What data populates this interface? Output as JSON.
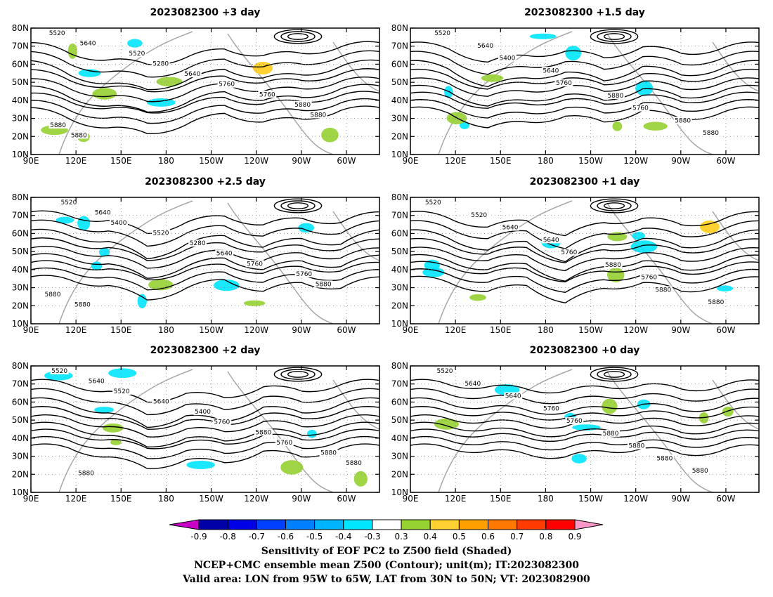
{
  "panels": [
    {
      "title": "2023082300 +3 day",
      "labels": [
        "5520",
        "5640",
        "5520",
        "5280",
        "5640",
        "5760",
        "5760",
        "5880",
        "5880",
        "5880",
        "5880"
      ]
    },
    {
      "title": "2023082300 +1.5 day",
      "labels": [
        "5520",
        "5640",
        "5400",
        "5640",
        "5760",
        "5880",
        "5760",
        "5880",
        "5880"
      ]
    },
    {
      "title": "2023082300 +2.5 day",
      "labels": [
        "5520",
        "5640",
        "5400",
        "5520",
        "5280",
        "5640",
        "5760",
        "5760",
        "5880",
        "5880",
        "5880"
      ]
    },
    {
      "title": "2023082300 +1 day",
      "labels": [
        "5520",
        "5520",
        "5640",
        "5640",
        "5760",
        "5880",
        "5760",
        "5880",
        "5880"
      ]
    },
    {
      "title": "2023082300 +2 day",
      "labels": [
        "5520",
        "5640",
        "5520",
        "5640",
        "5400",
        "5760",
        "5880",
        "5760",
        "5880",
        "5880",
        "5880"
      ]
    },
    {
      "title": "2023082300 +0 day",
      "labels": [
        "5520",
        "5640",
        "5640",
        "5760",
        "5760",
        "5880",
        "5880",
        "5880",
        "5880"
      ]
    }
  ],
  "axes": {
    "lat_ticks": [
      "10N",
      "20N",
      "30N",
      "40N",
      "50N",
      "60N",
      "70N",
      "80N"
    ],
    "lon_ticks": [
      "90E",
      "120E",
      "150E",
      "180",
      "150W",
      "120W",
      "90W",
      "60W"
    ]
  },
  "colorbar": {
    "ticks": [
      "-0.9",
      "-0.8",
      "-0.7",
      "-0.6",
      "-0.5",
      "-0.4",
      "-0.3",
      "0.3",
      "0.4",
      "0.5",
      "0.6",
      "0.7",
      "0.8",
      "0.9"
    ],
    "colors": [
      "#c800c8",
      "#0000a8",
      "#0000e6",
      "#0040ff",
      "#0080ff",
      "#00b4ff",
      "#00e6ff",
      "#ffffff",
      "#96d232",
      "#ffd232",
      "#ffa000",
      "#ff7800",
      "#ff3c00",
      "#ff0000",
      "#ff96c8"
    ]
  },
  "caption": {
    "line1": "Sensitivity of EOF PC2 to Z500 field (Shaded)",
    "line2": "NCEP+CMC ensemble mean Z500 (Contour); unit(m); IT:2023082300",
    "line3": "Valid area: LON from 95W to 65W, LAT from 30N to 50N; VT: 2023082900"
  }
}
